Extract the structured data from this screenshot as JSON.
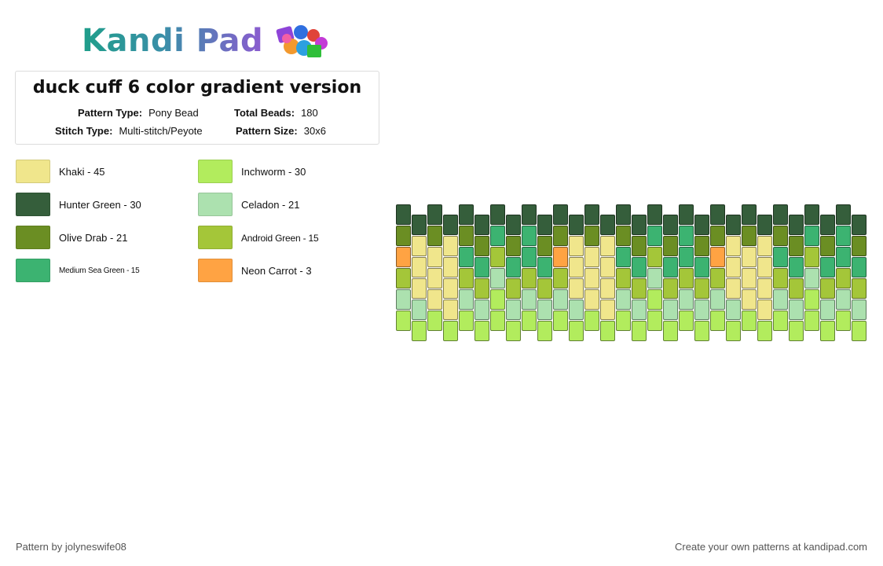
{
  "brand": {
    "name": "Kandi Pad"
  },
  "pattern": {
    "title": "duck cuff 6 color gradient version",
    "type_label": "Pattern Type:",
    "type_value": "Pony Bead",
    "beads_label": "Total Beads:",
    "beads_value": "180",
    "stitch_label": "Stitch Type:",
    "stitch_value": "Multi-stitch/Peyote",
    "size_label": "Pattern Size:",
    "size_value": "30x6"
  },
  "legend": [
    {
      "label": "Khaki - 45",
      "color": "#F0E68C"
    },
    {
      "label": "Hunter Green - 30",
      "color": "#355E3B"
    },
    {
      "label": "Olive Drab - 21",
      "color": "#6B8E23"
    },
    {
      "label": "Medium Sea Green - 15",
      "color": "#3CB371"
    },
    {
      "label": "Inchworm - 30",
      "color": "#B2EC5D"
    },
    {
      "label": "Celadon - 21",
      "color": "#ACE1AF"
    },
    {
      "label": "Android Green - 15",
      "color": "#A4C639"
    },
    {
      "label": "Neon Carrot - 3",
      "color": "#FFA343"
    }
  ],
  "footer": {
    "credit": "Pattern by jolyneswife08",
    "cta": "Create your own patterns at kandipad.com"
  }
}
